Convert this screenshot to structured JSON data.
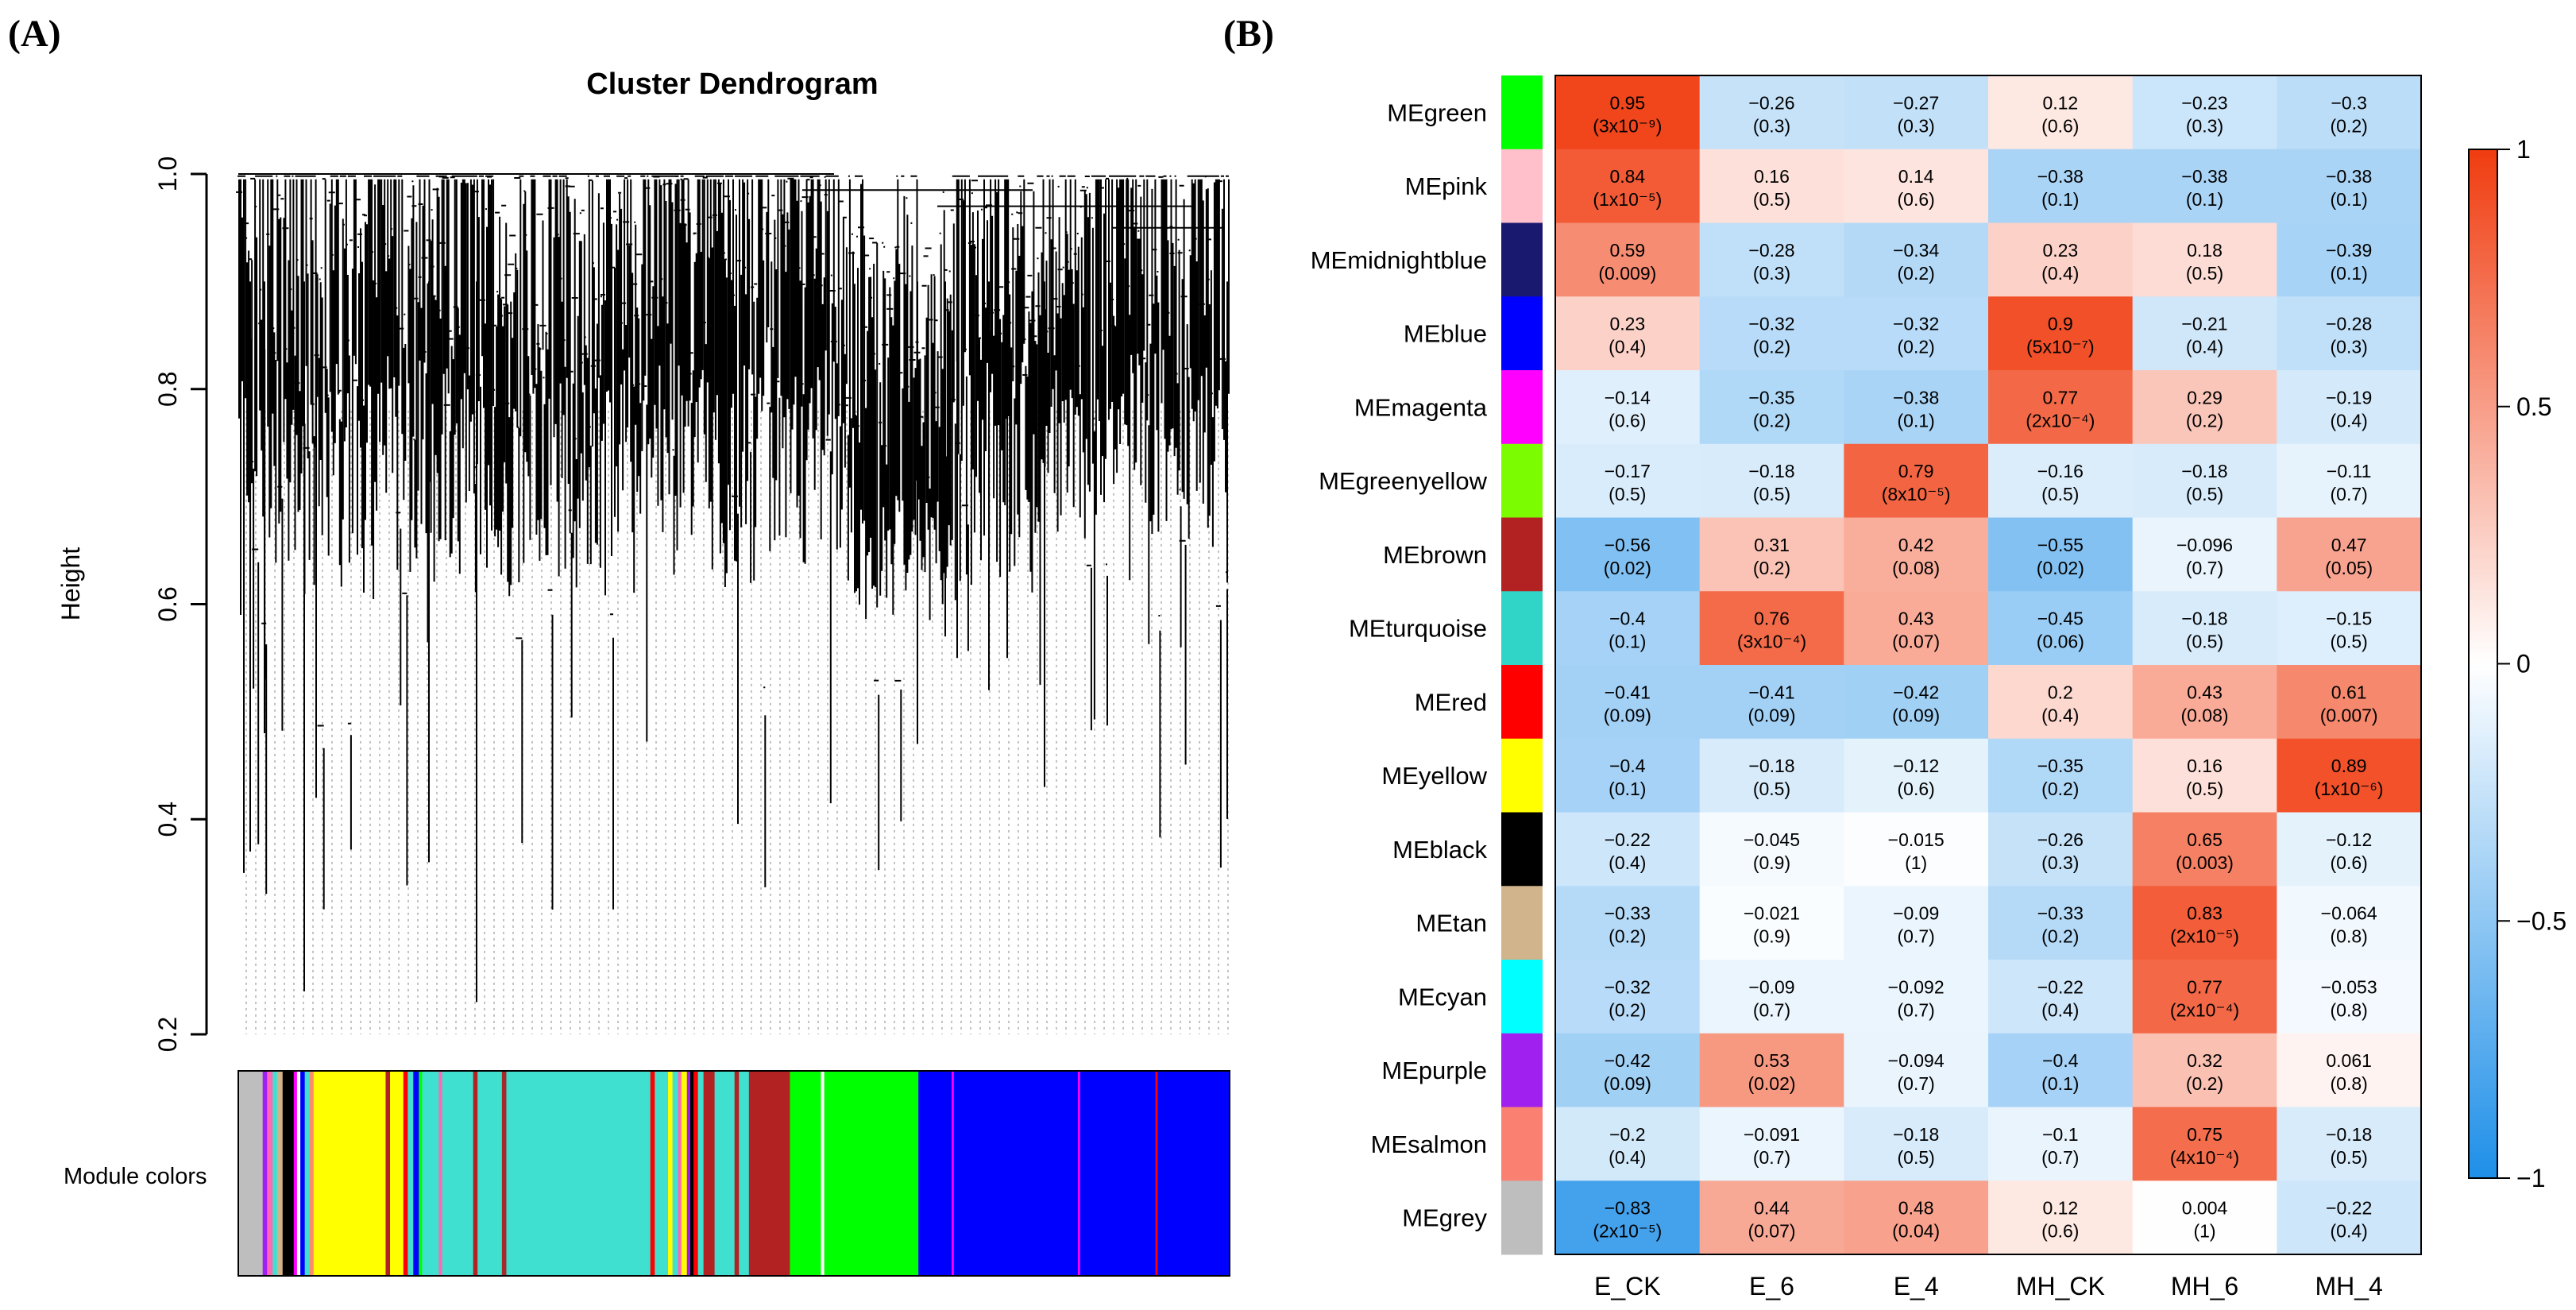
{
  "panel_a_label": "(A)",
  "panel_b_label": "(B)",
  "chart_data": [
    {
      "type": "dendrogram",
      "title": "Cluster Dendrogram",
      "ylabel": "Height",
      "ylim": [
        0.2,
        1.0
      ],
      "yticks": [
        "0.2",
        "0.4",
        "0.6",
        "0.8",
        "1.0"
      ],
      "color_bar_label": "Module colors",
      "module_color_segments": [
        {
          "color": "#bebebe",
          "share": 2.2
        },
        {
          "color": "#a020f0",
          "share": 0.4
        },
        {
          "color": "#ff69b4",
          "share": 0.5
        },
        {
          "color": "#40e0d0",
          "share": 0.4
        },
        {
          "color": "#d2b48c",
          "share": 0.5
        },
        {
          "color": "#000000",
          "share": 1.0
        },
        {
          "color": "#ff00ff",
          "share": 0.3
        },
        {
          "color": "#ffffff",
          "share": 0.3
        },
        {
          "color": "#0000ff",
          "share": 0.4
        },
        {
          "color": "#40e0d0",
          "share": 0.4
        },
        {
          "color": "#ff8c69",
          "share": 0.4
        },
        {
          "color": "#ffff00",
          "share": 6.5
        },
        {
          "color": "#b22222",
          "share": 0.4
        },
        {
          "color": "#ffff00",
          "share": 1.2
        },
        {
          "color": "#ff0000",
          "share": 0.4
        },
        {
          "color": "#40e0d0",
          "share": 0.5
        },
        {
          "color": "#0000ff",
          "share": 0.5
        },
        {
          "color": "#00ff00",
          "share": 0.3
        },
        {
          "color": "#40e0d0",
          "share": 1.5
        },
        {
          "color": "#ff69b4",
          "share": 0.3
        },
        {
          "color": "#40e0d0",
          "share": 2.8
        },
        {
          "color": "#b22222",
          "share": 0.4
        },
        {
          "color": "#40e0d0",
          "share": 2.2
        },
        {
          "color": "#a52a2a",
          "share": 0.4
        },
        {
          "color": "#40e0d0",
          "share": 13.0
        },
        {
          "color": "#ff0000",
          "share": 0.4
        },
        {
          "color": "#40e0d0",
          "share": 1.2
        },
        {
          "color": "#ffff00",
          "share": 0.4
        },
        {
          "color": "#40e0d0",
          "share": 0.5
        },
        {
          "color": "#ff69b4",
          "share": 0.3
        },
        {
          "color": "#ffff00",
          "share": 0.5
        },
        {
          "color": "#a020f0",
          "share": 0.3
        },
        {
          "color": "#000000",
          "share": 0.3
        },
        {
          "color": "#ff0000",
          "share": 0.4
        },
        {
          "color": "#40e0d0",
          "share": 0.5
        },
        {
          "color": "#b22222",
          "share": 1.0
        },
        {
          "color": "#40e0d0",
          "share": 1.8
        },
        {
          "color": "#b22222",
          "share": 0.4
        },
        {
          "color": "#40e0d0",
          "share": 0.9
        },
        {
          "color": "#b22222",
          "share": 3.7
        },
        {
          "color": "#00ff00",
          "share": 2.8
        },
        {
          "color": "#ffffff",
          "share": 0.3
        },
        {
          "color": "#00ff00",
          "share": 8.5
        },
        {
          "color": "#0000ff",
          "share": 3.0
        },
        {
          "color": "#ff00ff",
          "share": 0.2
        },
        {
          "color": "#0000ff",
          "share": 11.2
        },
        {
          "color": "#ff00ff",
          "share": 0.2
        },
        {
          "color": "#0000ff",
          "share": 6.8
        },
        {
          "color": "#ff0000",
          "share": 0.2
        },
        {
          "color": "#0000ff",
          "share": 6.5
        }
      ]
    },
    {
      "type": "heatmap",
      "columns": [
        "E_CK",
        "E_6",
        "E_4",
        "MH_CK",
        "MH_6",
        "MH_4"
      ],
      "rows": [
        {
          "module": "MEgreen",
          "color": "#00ff00",
          "cor": [
            0.95,
            -0.26,
            -0.27,
            0.12,
            -0.23,
            -0.3
          ],
          "cor_text": [
            "0.95",
            "−0.26",
            "−0.27",
            "0.12",
            "−0.23",
            "−0.3"
          ],
          "p_text": [
            "(3x10⁻⁹)",
            "(0.3)",
            "(0.3)",
            "(0.6)",
            "(0.3)",
            "(0.2)"
          ]
        },
        {
          "module": "MEpink",
          "color": "#ffc0cb",
          "cor": [
            0.84,
            0.16,
            0.14,
            -0.38,
            -0.38,
            -0.38
          ],
          "cor_text": [
            "0.84",
            "0.16",
            "0.14",
            "−0.38",
            "−0.38",
            "−0.38"
          ],
          "p_text": [
            "(1x10⁻⁵)",
            "(0.5)",
            "(0.6)",
            "(0.1)",
            "(0.1)",
            "(0.1)"
          ]
        },
        {
          "module": "MEmidnightblue",
          "color": "#191970",
          "cor": [
            0.59,
            -0.28,
            -0.34,
            0.23,
            0.18,
            -0.39
          ],
          "cor_text": [
            "0.59",
            "−0.28",
            "−0.34",
            "0.23",
            "0.18",
            "−0.39"
          ],
          "p_text": [
            "(0.009)",
            "(0.3)",
            "(0.2)",
            "(0.4)",
            "(0.5)",
            "(0.1)"
          ]
        },
        {
          "module": "MEblue",
          "color": "#0000ff",
          "cor": [
            0.23,
            -0.32,
            -0.32,
            0.9,
            -0.21,
            -0.28
          ],
          "cor_text": [
            "0.23",
            "−0.32",
            "−0.32",
            "0.9",
            "−0.21",
            "−0.28"
          ],
          "p_text": [
            "(0.4)",
            "(0.2)",
            "(0.2)",
            "(5x10⁻⁷)",
            "(0.4)",
            "(0.3)"
          ]
        },
        {
          "module": "MEmagenta",
          "color": "#ff00ff",
          "cor": [
            -0.14,
            -0.35,
            -0.38,
            0.77,
            0.29,
            -0.19
          ],
          "cor_text": [
            "−0.14",
            "−0.35",
            "−0.38",
            "0.77",
            "0.29",
            "−0.19"
          ],
          "p_text": [
            "(0.6)",
            "(0.2)",
            "(0.1)",
            "(2x10⁻⁴)",
            "(0.2)",
            "(0.4)"
          ]
        },
        {
          "module": "MEgreenyellow",
          "color": "#7cfc00",
          "cor": [
            -0.17,
            -0.18,
            0.79,
            -0.16,
            -0.18,
            -0.11
          ],
          "cor_text": [
            "−0.17",
            "−0.18",
            "0.79",
            "−0.16",
            "−0.18",
            "−0.11"
          ],
          "p_text": [
            "(0.5)",
            "(0.5)",
            "(8x10⁻⁵)",
            "(0.5)",
            "(0.5)",
            "(0.7)"
          ]
        },
        {
          "module": "MEbrown",
          "color": "#b22222",
          "cor": [
            -0.56,
            0.31,
            0.42,
            -0.55,
            -0.096,
            0.47
          ],
          "cor_text": [
            "−0.56",
            "0.31",
            "0.42",
            "−0.55",
            "−0.096",
            "0.47"
          ],
          "p_text": [
            "(0.02)",
            "(0.2)",
            "(0.08)",
            "(0.02)",
            "(0.7)",
            "(0.05)"
          ]
        },
        {
          "module": "MEturquoise",
          "color": "#30d5c8",
          "cor": [
            -0.4,
            0.76,
            0.43,
            -0.45,
            -0.18,
            -0.15
          ],
          "cor_text": [
            "−0.4",
            "0.76",
            "0.43",
            "−0.45",
            "−0.18",
            "−0.15"
          ],
          "p_text": [
            "(0.1)",
            "(3x10⁻⁴)",
            "(0.07)",
            "(0.06)",
            "(0.5)",
            "(0.5)"
          ]
        },
        {
          "module": "MEred",
          "color": "#ff0000",
          "cor": [
            -0.41,
            -0.41,
            -0.42,
            0.2,
            0.43,
            0.61
          ],
          "cor_text": [
            "−0.41",
            "−0.41",
            "−0.42",
            "0.2",
            "0.43",
            "0.61"
          ],
          "p_text": [
            "(0.09)",
            "(0.09)",
            "(0.09)",
            "(0.4)",
            "(0.08)",
            "(0.007)"
          ]
        },
        {
          "module": "MEyellow",
          "color": "#ffff00",
          "cor": [
            -0.4,
            -0.18,
            -0.12,
            -0.35,
            0.16,
            0.89
          ],
          "cor_text": [
            "−0.4",
            "−0.18",
            "−0.12",
            "−0.35",
            "0.16",
            "0.89"
          ],
          "p_text": [
            "(0.1)",
            "(0.5)",
            "(0.6)",
            "(0.2)",
            "(0.5)",
            "(1x10⁻⁶)"
          ]
        },
        {
          "module": "MEblack",
          "color": "#000000",
          "cor": [
            -0.22,
            -0.045,
            -0.015,
            -0.26,
            0.65,
            -0.12
          ],
          "cor_text": [
            "−0.22",
            "−0.045",
            "−0.015",
            "−0.26",
            "0.65",
            "−0.12"
          ],
          "p_text": [
            "(0.4)",
            "(0.9)",
            "(1)",
            "(0.3)",
            "(0.003)",
            "(0.6)"
          ]
        },
        {
          "module": "MEtan",
          "color": "#d2b48c",
          "cor": [
            -0.33,
            -0.021,
            -0.09,
            -0.33,
            0.83,
            -0.064
          ],
          "cor_text": [
            "−0.33",
            "−0.021",
            "−0.09",
            "−0.33",
            "0.83",
            "−0.064"
          ],
          "p_text": [
            "(0.2)",
            "(0.9)",
            "(0.7)",
            "(0.2)",
            "(2x10⁻⁵)",
            "(0.8)"
          ]
        },
        {
          "module": "MEcyan",
          "color": "#00ffff",
          "cor": [
            -0.32,
            -0.09,
            -0.092,
            -0.22,
            0.77,
            -0.053
          ],
          "cor_text": [
            "−0.32",
            "−0.09",
            "−0.092",
            "−0.22",
            "0.77",
            "−0.053"
          ],
          "p_text": [
            "(0.2)",
            "(0.7)",
            "(0.7)",
            "(0.4)",
            "(2x10⁻⁴)",
            "(0.8)"
          ]
        },
        {
          "module": "MEpurple",
          "color": "#a020f0",
          "cor": [
            -0.42,
            0.53,
            -0.094,
            -0.4,
            0.32,
            0.061
          ],
          "cor_text": [
            "−0.42",
            "0.53",
            "−0.094",
            "−0.4",
            "0.32",
            "0.061"
          ],
          "p_text": [
            "(0.09)",
            "(0.02)",
            "(0.7)",
            "(0.1)",
            "(0.2)",
            "(0.8)"
          ]
        },
        {
          "module": "MEsalmon",
          "color": "#fa8072",
          "cor": [
            -0.2,
            -0.091,
            -0.18,
            -0.1,
            0.75,
            -0.18
          ],
          "cor_text": [
            "−0.2",
            "−0.091",
            "−0.18",
            "−0.1",
            "0.75",
            "−0.18"
          ],
          "p_text": [
            "(0.4)",
            "(0.7)",
            "(0.5)",
            "(0.7)",
            "(4x10⁻⁴)",
            "(0.5)"
          ]
        },
        {
          "module": "MEgrey",
          "color": "#bebebe",
          "cor": [
            -0.83,
            0.44,
            0.48,
            0.12,
            0.004,
            -0.22
          ],
          "cor_text": [
            "−0.83",
            "0.44",
            "0.48",
            "0.12",
            "0.004",
            "−0.22"
          ],
          "p_text": [
            "(2x10⁻⁵)",
            "(0.07)",
            "(0.04)",
            "(0.6)",
            "(1)",
            "(0.4)"
          ]
        }
      ],
      "colorbar": {
        "range": [
          -1,
          1
        ],
        "ticks": [
          "1",
          "0.5",
          "0",
          "−0.5",
          "−1"
        ],
        "low_color": "#1e8fe8",
        "mid_color": "#ffffff",
        "high_color": "#f03c10"
      }
    }
  ]
}
